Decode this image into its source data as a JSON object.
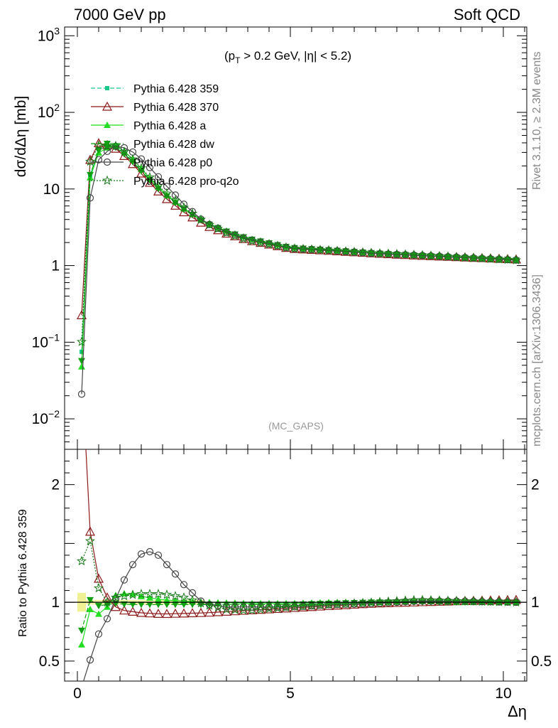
{
  "header": {
    "left": "7000 GeV pp",
    "right": "Soft QCD"
  },
  "side_labels": {
    "rivet": "Rivet 3.1.10, ≥ 2.3M events",
    "mcplots": "mcplots.cern.ch [arXiv:1306.3436]"
  },
  "colors": {
    "p359": "#19c98a",
    "p370": "#8b1a1a",
    "a": "#22dd22",
    "dw": "#11a011",
    "p0": "#444444",
    "proq2o": "#1a7a1a",
    "refband": "#eeee88"
  },
  "chart_data": [
    {
      "type": "line",
      "title": "",
      "annotation": "(p_T > 0.2 GeV, |η| < 5.2)",
      "watermark": "(MC_GAPS)",
      "xlabel": "",
      "ylabel": "dσ/dΔη [mb]",
      "yscale": "log",
      "xlim": [
        -0.3,
        10.55
      ],
      "ylim": [
        0.004,
        1300
      ],
      "yticks": [
        {
          "value": 0.01,
          "base": "10",
          "exp": "−2"
        },
        {
          "value": 0.1,
          "base": "10",
          "exp": "−1"
        },
        {
          "value": 1,
          "base": "1",
          "exp": ""
        },
        {
          "value": 10,
          "base": "10",
          "exp": ""
        },
        {
          "value": 100,
          "base": "10",
          "exp": "2"
        },
        {
          "value": 1000,
          "base": "10",
          "exp": "3"
        }
      ],
      "legend_position": "top-left",
      "series": [
        {
          "name": "Pythia 6.428 359",
          "key": "p359",
          "style": "dashed",
          "marker": "square"
        },
        {
          "name": "Pythia 6.428 370",
          "key": "p370",
          "style": "solid",
          "marker": "open-triangle"
        },
        {
          "name": "Pythia 6.428 a",
          "key": "a",
          "style": "solid",
          "marker": "triangle"
        },
        {
          "name": "Pythia 6.428 dw",
          "key": "dw",
          "style": "dashed",
          "marker": "triangle-down"
        },
        {
          "name": "Pythia 6.428 p0",
          "key": "p0",
          "style": "solid",
          "marker": "open-circle"
        },
        {
          "name": "Pythia 6.428 pro-q2o",
          "key": "proq2o",
          "style": "dotted",
          "marker": "open-star"
        }
      ],
      "reference_curve": {
        "x": [
          0.1,
          0.3,
          0.5,
          0.7,
          0.9,
          1.1,
          1.3,
          1.5,
          1.7,
          1.9,
          2.1,
          2.5,
          3.0,
          3.5,
          4.0,
          5.0,
          6.0,
          7.0,
          8.0,
          9.0,
          10.3
        ],
        "y": [
          0.075,
          15,
          33,
          36,
          35,
          29,
          23,
          17.5,
          13.3,
          10.3,
          8.2,
          5.5,
          3.7,
          2.85,
          2.3,
          1.75,
          1.6,
          1.45,
          1.35,
          1.27,
          1.18
        ]
      }
    },
    {
      "type": "line",
      "title": "",
      "xlabel": "Δη",
      "ylabel": "Ratio to Pythia 6.428 359",
      "xlim": [
        -0.3,
        10.55
      ],
      "ylim": [
        0.33,
        2.3
      ],
      "xticks": [
        0,
        5,
        10
      ],
      "yticks": [
        0.5,
        1,
        2
      ],
      "series": [
        {
          "key": "p359",
          "x": [
            0.1,
            10.3
          ],
          "y": [
            1.0,
            1.0
          ]
        },
        {
          "key": "p370",
          "x": [
            0.1,
            0.3,
            0.5,
            0.7,
            0.9,
            1.1,
            1.5,
            2.0,
            3.0,
            4.0,
            5.0,
            6.0,
            7.0,
            8.0,
            9.0,
            10.3
          ],
          "y": [
            3.0,
            1.6,
            1.2,
            1.04,
            0.96,
            0.93,
            0.91,
            0.9,
            0.91,
            0.93,
            0.95,
            0.97,
            0.99,
            1.0,
            1.01,
            1.02
          ]
        },
        {
          "key": "a",
          "x": [
            0.1,
            0.3,
            0.5,
            0.7,
            0.9,
            1.2,
            1.5,
            2.0,
            3.0,
            4.0,
            5.0,
            6.0,
            7.0,
            8.0,
            9.0,
            10.3
          ],
          "y": [
            0.64,
            0.94,
            0.9,
            0.96,
            1.06,
            1.08,
            1.05,
            1.02,
            1.0,
            0.99,
            0.99,
            1.0,
            1.0,
            1.01,
            1.0,
            1.0
          ]
        },
        {
          "key": "dw",
          "x": [
            0.1,
            0.3,
            0.5,
            0.7,
            0.9,
            1.2,
            1.5,
            2.0,
            3.0,
            4.0,
            5.0,
            6.0,
            7.0,
            8.0,
            9.0,
            10.3
          ],
          "y": [
            0.76,
            1.02,
            0.97,
            0.98,
            0.99,
            0.98,
            0.98,
            0.98,
            0.98,
            0.98,
            0.98,
            0.99,
            1.0,
            1.0,
            1.0,
            1.0
          ]
        },
        {
          "key": "p0",
          "x": [
            0.1,
            0.3,
            0.5,
            0.7,
            0.9,
            1.1,
            1.3,
            1.5,
            1.7,
            1.9,
            2.1,
            2.3,
            2.5,
            2.7,
            2.9,
            3.1,
            3.5,
            4.0,
            5.0,
            6.0,
            7.0,
            8.0,
            9.0,
            10.3
          ],
          "y": [
            0.28,
            0.51,
            0.73,
            0.86,
            1.03,
            1.19,
            1.32,
            1.41,
            1.43,
            1.4,
            1.32,
            1.24,
            1.15,
            1.08,
            1.01,
            0.98,
            0.96,
            0.96,
            0.96,
            0.98,
            0.99,
            1.01,
            1.01,
            1.0
          ]
        },
        {
          "key": "proq2o",
          "x": [
            0.1,
            0.3,
            0.5,
            0.7,
            0.9,
            1.2,
            1.5,
            2.0,
            2.5,
            3.0,
            3.5,
            4.0,
            5.0,
            6.0,
            7.0,
            8.0,
            9.0,
            10.3
          ],
          "y": [
            1.35,
            1.52,
            1.12,
            1.0,
            1.04,
            1.06,
            1.07,
            1.07,
            1.04,
            0.98,
            0.94,
            0.93,
            0.96,
            0.98,
            1.0,
            1.02,
            1.01,
            1.0
          ]
        }
      ]
    }
  ]
}
